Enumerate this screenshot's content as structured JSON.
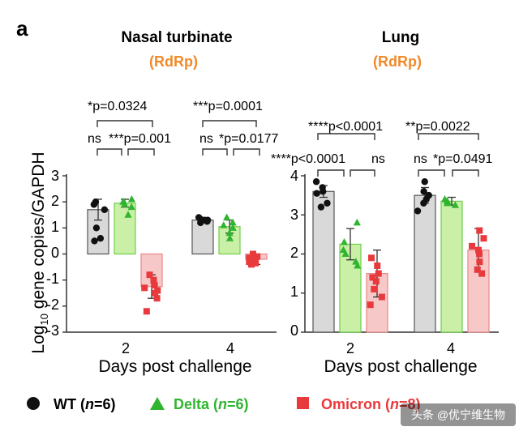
{
  "panel_label": "a",
  "legend": {
    "wt": {
      "label": "WT",
      "n": "n",
      "eq": "=6",
      "color": "#111111"
    },
    "delta": {
      "label": "Delta",
      "n": "n",
      "eq": "=6",
      "color": "#2fb52f"
    },
    "omicron": {
      "label": "Omicron",
      "n": "n",
      "eq": "=8",
      "color": "#e8393c"
    }
  },
  "watermark": "头条 @优宁维生物",
  "chart_data": [
    {
      "type": "bar",
      "title": "Nasal turbinate",
      "subtitle": "(RdRp)",
      "ylabel_prefix": "Log",
      "ylabel_sub": "10",
      "ylabel_suffix": " gene copies/GAPDH",
      "xlabel": "Days post challenge",
      "categories": [
        "2",
        "4"
      ],
      "ylim": [
        -3,
        3
      ],
      "yticks": [
        "3",
        "2",
        "1",
        "0",
        "-1",
        "-2",
        "-3"
      ],
      "series": [
        {
          "name": "WT",
          "values": [
            1.7,
            1.3
          ],
          "errors": [
            0.4,
            0.1
          ],
          "points": [
            [
              2.0,
              1.9,
              1.7,
              1.0,
              0.6,
              0.5
            ],
            [
              1.4,
              1.35,
              1.3,
              1.3,
              1.25,
              1.2
            ]
          ]
        },
        {
          "name": "Delta",
          "values": [
            1.95,
            1.05
          ],
          "errors": [
            0.15,
            0.25
          ],
          "points": [
            [
              2.1,
              2.0,
              2.0,
              1.9,
              1.8,
              1.5
            ],
            [
              1.4,
              1.2,
              1.1,
              1.0,
              0.8,
              0.6
            ]
          ]
        },
        {
          "name": "Omicron",
          "values": [
            -1.25,
            -0.2
          ],
          "errors": [
            0.45,
            0.2
          ],
          "points": [
            [
              -0.8,
              -1.0,
              -1.2,
              -1.3,
              -1.4,
              -1.5,
              -1.7,
              -2.2
            ],
            [
              0.0,
              -0.1,
              -0.15,
              -0.2,
              -0.25,
              -0.3,
              -0.35,
              -0.4
            ]
          ]
        }
      ],
      "annotations": [
        "*p=0.0324",
        "ns",
        "***p=0.001",
        "***p=0.0001",
        "ns",
        "*p=0.0177"
      ]
    },
    {
      "type": "bar",
      "title": "Lung",
      "subtitle": "(RdRp)",
      "xlabel": "Days post challenge",
      "categories": [
        "2",
        "4"
      ],
      "ylim": [
        0,
        4
      ],
      "yticks": [
        "4",
        "3",
        "2",
        "1",
        "0"
      ],
      "series": [
        {
          "name": "WT",
          "values": [
            3.6,
            3.5
          ],
          "errors": [
            0.15,
            0.2
          ],
          "points": [
            [
              3.85,
              3.7,
              3.6,
              3.55,
              3.3,
              3.2
            ],
            [
              3.85,
              3.6,
              3.5,
              3.4,
              3.3,
              3.1
            ]
          ]
        },
        {
          "name": "Delta",
          "values": [
            2.25,
            3.35
          ],
          "errors": [
            0.4,
            0.1
          ],
          "points": [
            [
              2.8,
              2.3,
              2.1,
              2.0,
              1.8,
              1.7
            ],
            [
              3.4,
              3.35,
              3.35,
              3.3,
              3.3,
              3.25
            ]
          ]
        },
        {
          "name": "Omicron",
          "values": [
            1.5,
            2.1
          ],
          "errors": [
            0.6,
            0.55
          ],
          "points": [
            [
              1.9,
              1.7,
              1.5,
              1.4,
              1.3,
              1.1,
              0.9,
              0.7
            ],
            [
              2.6,
              2.4,
              2.2,
              2.1,
              2.0,
              1.8,
              1.6,
              1.5
            ]
          ]
        }
      ],
      "annotations": [
        "****p<0.0001",
        "**p=0.0022",
        "****p<0.0001",
        "ns",
        "ns",
        "*p=0.0491"
      ]
    }
  ]
}
